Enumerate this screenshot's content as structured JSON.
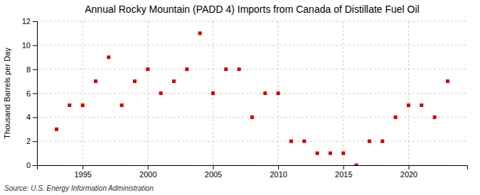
{
  "chart_data": {
    "type": "scatter",
    "title": "Annual Rocky Mountain (PADD 4) Imports from Canada of Distillate Fuel Oil",
    "ylabel": "Thousand Barrels per Day",
    "annotations": [
      "Source: U.S. Energy Information Administration"
    ],
    "x": [
      1993,
      1994,
      1995,
      1996,
      1997,
      1998,
      1999,
      2000,
      2001,
      2002,
      2003,
      2004,
      2005,
      2006,
      2007,
      2008,
      2009,
      2010,
      2011,
      2012,
      2013,
      2014,
      2015,
      2016,
      2017,
      2018,
      2019,
      2020,
      2021,
      2022,
      2023
    ],
    "values": [
      3,
      5,
      5,
      7,
      9,
      5,
      7,
      8,
      6,
      7,
      8,
      11,
      6,
      8,
      8,
      4,
      6,
      6,
      2,
      2,
      1,
      1,
      1,
      0,
      2,
      2,
      4,
      5,
      5,
      4,
      7
    ],
    "color": "#cc0000",
    "marker": "square",
    "xlim": [
      1991.5,
      2024.5
    ],
    "xticks": [
      1995,
      2000,
      2005,
      2010,
      2015,
      2020
    ],
    "ylim": [
      0,
      12
    ],
    "yticks": [
      0,
      2,
      4,
      6,
      8,
      10,
      12
    ],
    "grid": true
  }
}
